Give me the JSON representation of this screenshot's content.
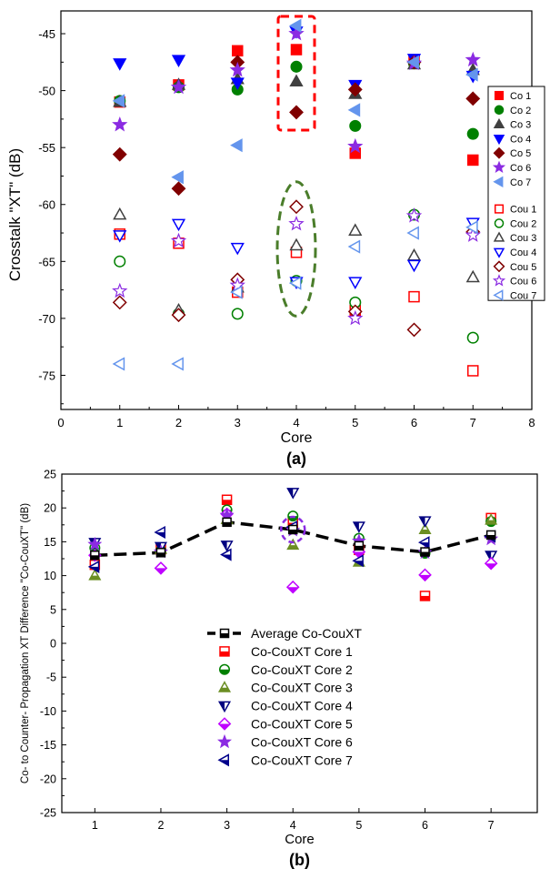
{
  "chart_data": [
    {
      "type": "scatter",
      "panel_label": "(a)",
      "xlabel": "Core",
      "ylabel": "Crosstalk \"XT\" (dB)",
      "xlim": [
        0,
        8
      ],
      "ylim": [
        -78,
        -43
      ],
      "xticks": [
        "0",
        "1",
        "2",
        "3",
        "4",
        "5",
        "6",
        "7",
        "8"
      ],
      "yticks": [
        "-45",
        "-50",
        "-55",
        "-60",
        "-65",
        "-70",
        "-75"
      ],
      "grid": false,
      "legend_position": "right",
      "x": [
        1,
        2,
        3,
        4,
        5,
        6,
        7
      ],
      "series": [
        {
          "name": "Co 1",
          "marker": "square",
          "filled": true,
          "color": "#ff0000",
          "values": [
            -51.0,
            -49.5,
            -46.5,
            -46.4,
            -55.5,
            -47.3,
            -56.1
          ]
        },
        {
          "name": "Co 2",
          "marker": "circle",
          "filled": true,
          "color": "#008000",
          "values": [
            -50.9,
            -49.7,
            -49.9,
            -47.9,
            -53.1,
            -47.6,
            -53.8
          ]
        },
        {
          "name": "Co 3",
          "marker": "triangle-up",
          "filled": true,
          "color": "#404040",
          "values": [
            -51.0,
            -49.5,
            -49.0,
            -49.2,
            -50.3,
            -47.7,
            -48.2
          ]
        },
        {
          "name": "Co 4",
          "marker": "triangle-down",
          "filled": true,
          "color": "#0000ff",
          "values": [
            -47.6,
            -47.3,
            -49.3,
            -44.8,
            -49.5,
            -47.2,
            -48.7
          ]
        },
        {
          "name": "Co 5",
          "marker": "diamond",
          "filled": true,
          "color": "#800000",
          "values": [
            -55.6,
            -58.6,
            -47.5,
            -51.9,
            -49.9,
            -47.5,
            -50.7
          ]
        },
        {
          "name": "Co 6",
          "marker": "star",
          "filled": true,
          "color": "#8b2be2",
          "values": [
            -53.0,
            -49.7,
            -48.2,
            -45.0,
            -54.9,
            -47.6,
            -47.3
          ]
        },
        {
          "name": "Co 7",
          "marker": "triangle-left",
          "filled": true,
          "color": "#6495ed",
          "values": [
            -50.9,
            -57.6,
            -54.8,
            -44.3,
            -51.7,
            -47.5,
            -48.6
          ]
        },
        {
          "name": "Cou 1",
          "marker": "square",
          "filled": false,
          "color": "#ff0000",
          "values": [
            -62.6,
            -63.4,
            -67.7,
            -64.2,
            -69.3,
            -68.1,
            -74.6
          ]
        },
        {
          "name": "Cou 2",
          "marker": "circle",
          "filled": false,
          "color": "#008000",
          "values": [
            -65.0,
            -69.6,
            -69.6,
            -66.7,
            -68.6,
            -60.9,
            -71.7
          ]
        },
        {
          "name": "Cou 3",
          "marker": "triangle-up",
          "filled": false,
          "color": "#404040",
          "values": [
            -60.9,
            -69.3,
            -67.3,
            -63.6,
            -62.3,
            -64.5,
            -66.4
          ]
        },
        {
          "name": "Cou 4",
          "marker": "triangle-down",
          "filled": false,
          "color": "#0000ff",
          "values": [
            -62.7,
            -61.7,
            -63.8,
            -66.8,
            -66.8,
            -65.3,
            -61.6
          ]
        },
        {
          "name": "Cou 5",
          "marker": "diamond",
          "filled": false,
          "color": "#800000",
          "values": [
            -68.6,
            -69.7,
            -66.6,
            -60.2,
            -69.4,
            -71.0,
            -62.4
          ]
        },
        {
          "name": "Cou 6",
          "marker": "star",
          "filled": false,
          "color": "#8b2be2",
          "values": [
            -67.6,
            -63.2,
            -67.1,
            -61.7,
            -70.0,
            -61.0,
            -62.7
          ]
        },
        {
          "name": "Cou 7",
          "marker": "triangle-left",
          "filled": false,
          "color": "#6495ed",
          "values": [
            -74.0,
            -74.0,
            -67.7,
            -66.9,
            -63.7,
            -62.5,
            -62.0
          ]
        }
      ]
    },
    {
      "type": "scatter",
      "panel_label": "(b)",
      "xlabel": "Core",
      "ylabel": "Co- to Counter- Propagation XT Difference \"Co-CouXT\" (dB)",
      "xlim": [
        0.5,
        7.7
      ],
      "ylim": [
        -25,
        25
      ],
      "xticks": [
        "1",
        "2",
        "3",
        "4",
        "5",
        "6",
        "7"
      ],
      "yticks": [
        "25",
        "20",
        "15",
        "10",
        "5",
        "0",
        "-5",
        "-10",
        "-15",
        "-20",
        "-25"
      ],
      "grid": false,
      "legend_position": "center",
      "x": [
        1,
        2,
        3,
        4,
        5,
        6,
        7
      ],
      "series": [
        {
          "name": "Average Co-CouXT",
          "marker": "half-square",
          "style": "dashed-line",
          "color": "#000000",
          "values": [
            13.0,
            13.4,
            17.9,
            16.8,
            14.4,
            13.5,
            16.0
          ]
        },
        {
          "name": "Co-CouXT Core 1",
          "marker": "half-square",
          "style": "points",
          "color": "#ff0000",
          "values": [
            11.6,
            13.9,
            21.2,
            17.8,
            13.8,
            7.0,
            18.5
          ]
        },
        {
          "name": "Co-CouXT Core 2",
          "marker": "half-circle",
          "style": "points",
          "color": "#008000",
          "values": [
            14.1,
            13.7,
            19.7,
            18.8,
            15.5,
            13.3,
            18.0
          ]
        },
        {
          "name": "Co-CouXT Core 3",
          "marker": "half-triangle-up",
          "style": "points",
          "color": "#6b8e23",
          "values": [
            10.0,
            13.9,
            18.3,
            14.5,
            12.0,
            16.8,
            18.2
          ]
        },
        {
          "name": "Co-CouXT Core 4",
          "marker": "half-triangle-down",
          "style": "points",
          "color": "#000080",
          "values": [
            14.9,
            14.3,
            14.5,
            22.3,
            17.3,
            18.1,
            13.0
          ]
        },
        {
          "name": "Co-CouXT Core 5",
          "marker": "half-diamond",
          "style": "points",
          "color": "#bf00ff",
          "values": [
            13.0,
            11.1,
            19.1,
            8.3,
            13.5,
            10.1,
            11.8
          ]
        },
        {
          "name": "Co-CouXT Core 6",
          "marker": "star",
          "style": "points",
          "color": "#8b2be2",
          "values": [
            14.6,
            13.5,
            18.9,
            16.7,
            15.1,
            13.4,
            15.4
          ]
        },
        {
          "name": "Co-CouXT Core 7",
          "marker": "half-triangle-left",
          "style": "points",
          "color": "#00008b",
          "values": [
            11.3,
            16.4,
            13.1,
            17.2,
            12.2,
            14.9,
            15.8
          ]
        }
      ]
    }
  ]
}
